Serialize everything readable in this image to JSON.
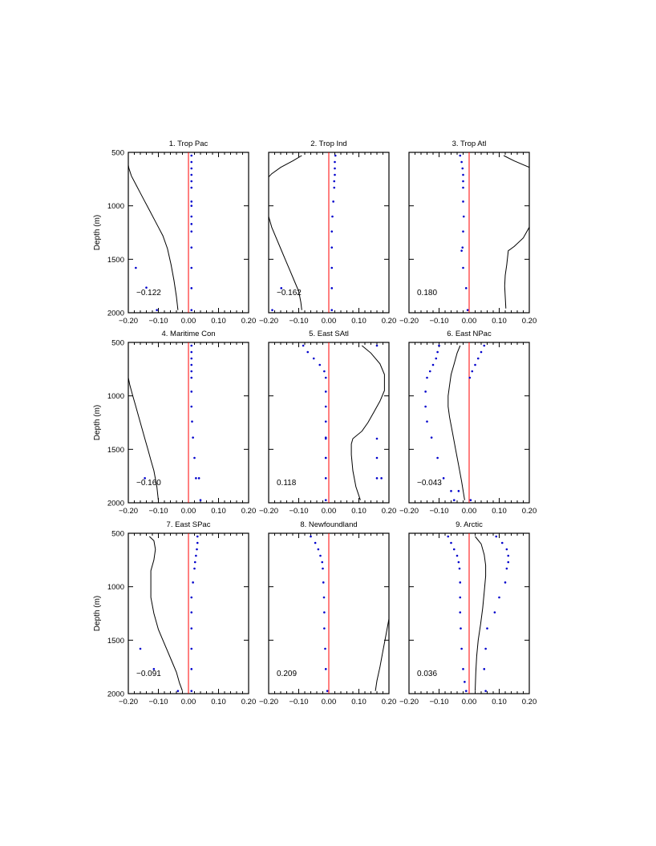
{
  "chart_data": [
    {
      "type": "line",
      "title": "1. Trop Pac",
      "ylabel": "Depth (m)",
      "xlim": [
        -0.2,
        0.2
      ],
      "ylim": [
        500,
        2000
      ],
      "x_tick_labels": [
        "-0.20",
        "-0.10",
        "0.00",
        "0.10",
        "0.20"
      ],
      "y_tick_labels": [
        "500",
        "1000",
        "1500",
        "2000"
      ],
      "y_reversed": true,
      "reference_line_x": 0,
      "correlation_label": "-0.122",
      "line": {
        "x": [
          -0.2,
          -0.198,
          -0.19,
          -0.175,
          -0.16,
          -0.145,
          -0.13,
          -0.115,
          -0.1,
          -0.085,
          -0.07,
          -0.058,
          -0.048,
          -0.04,
          -0.035
        ],
        "y": [
          620,
          650,
          720,
          800,
          880,
          960,
          1040,
          1120,
          1200,
          1280,
          1400,
          1550,
          1700,
          1850,
          1975
        ]
      },
      "dots": {
        "x": [
          0.01,
          0.01,
          0.01,
          0.01,
          0.01,
          0.01,
          0.01,
          0.01,
          0.01,
          0.01,
          0.01,
          0.01,
          0.01,
          0.01,
          0.01,
          -0.175,
          -0.14,
          -0.105
        ],
        "y": [
          530,
          590,
          650,
          710,
          770,
          830,
          960,
          1100,
          1240,
          1390,
          1580,
          1770,
          1975,
          1000,
          1170,
          1580,
          1765,
          1975
        ]
      }
    },
    {
      "type": "line",
      "title": "2. Trop Ind",
      "xlim": [
        -0.2,
        0.2
      ],
      "ylim": [
        500,
        2000
      ],
      "x_tick_labels": [
        "-0.20",
        "-0.10",
        "0.00",
        "0.10",
        "0.20"
      ],
      "y_reversed": true,
      "reference_line_x": 0,
      "correlation_label": "-0.162",
      "line": {
        "x": [
          -0.09,
          -0.12,
          -0.16,
          -0.19,
          -0.2,
          -0.2,
          -0.19,
          -0.175,
          -0.16,
          -0.145,
          -0.13,
          -0.115,
          -0.1,
          -0.093,
          -0.09
        ],
        "y": [
          530,
          580,
          640,
          700,
          730,
          1100,
          1200,
          1300,
          1400,
          1500,
          1600,
          1700,
          1800,
          1900,
          1975
        ]
      },
      "dots": {
        "x": [
          0.022,
          0.02,
          0.02,
          0.02,
          0.018,
          0.018,
          0.015,
          0.012,
          0.01,
          0.01,
          0.01,
          0.01,
          0.01,
          -0.158,
          -0.188
        ],
        "y": [
          530,
          590,
          650,
          710,
          770,
          830,
          960,
          1100,
          1240,
          1390,
          1580,
          1770,
          1975,
          1770,
          1975
        ]
      }
    },
    {
      "type": "line",
      "title": "3. Trop Atl",
      "xlim": [
        -0.2,
        0.2
      ],
      "ylim": [
        500,
        2000
      ],
      "x_tick_labels": [
        "-0.20",
        "-0.10",
        "0.00",
        "0.10",
        "0.20"
      ],
      "y_reversed": true,
      "reference_line_x": 0,
      "correlation_label": "0.180",
      "line_segments": [
        {
          "x": [
            0.115,
            0.15,
            0.2
          ],
          "y": [
            530,
            580,
            640
          ]
        },
        {
          "x": [
            0.2,
            0.18,
            0.15,
            0.13,
            0.125,
            0.12,
            0.118,
            0.12,
            0.122
          ],
          "y": [
            1200,
            1300,
            1380,
            1420,
            1550,
            1650,
            1750,
            1850,
            1960
          ]
        }
      ],
      "dots": {
        "x": [
          -0.03,
          -0.025,
          -0.022,
          -0.02,
          -0.02,
          -0.02,
          -0.02,
          -0.018,
          -0.02,
          -0.022,
          -0.025,
          -0.02,
          -0.01,
          -0.005
        ],
        "y": [
          530,
          590,
          650,
          710,
          770,
          830,
          960,
          1100,
          1240,
          1390,
          1420,
          1580,
          1770,
          1975
        ]
      }
    },
    {
      "type": "line",
      "title": "4. Maritime Con",
      "ylabel": "Depth (m)",
      "xlim": [
        -0.2,
        0.2
      ],
      "ylim": [
        500,
        2000
      ],
      "x_tick_labels": [
        "-0.20",
        "-0.10",
        "0.00",
        "0.10",
        "0.20"
      ],
      "y_tick_labels": [
        "500",
        "1000",
        "1500",
        "2000"
      ],
      "y_reversed": true,
      "reference_line_x": 0,
      "correlation_label": "-0.160",
      "line": {
        "x": [
          -0.2,
          -0.195,
          -0.185,
          -0.175,
          -0.165,
          -0.155,
          -0.145,
          -0.135,
          -0.125,
          -0.115,
          -0.105,
          -0.1
        ],
        "y": [
          830,
          900,
          1000,
          1100,
          1200,
          1300,
          1400,
          1500,
          1600,
          1700,
          1850,
          1980
        ]
      },
      "dots": {
        "x": [
          0.01,
          0.01,
          0.01,
          0.01,
          0.01,
          0.01,
          0.01,
          0.01,
          0.012,
          0.015,
          0.02,
          0.025,
          0.035,
          0.04,
          -0.145
        ],
        "y": [
          530,
          590,
          650,
          710,
          770,
          830,
          960,
          1100,
          1240,
          1390,
          1580,
          1770,
          1770,
          1975,
          1770
        ]
      }
    },
    {
      "type": "line",
      "title": "5. East SAtl",
      "xlim": [
        -0.2,
        0.2
      ],
      "ylim": [
        500,
        2000
      ],
      "x_tick_labels": [
        "-0.20",
        "-0.10",
        "0.00",
        "0.10",
        "0.20"
      ],
      "y_reversed": true,
      "reference_line_x": 0,
      "correlation_label": "0.118",
      "line": {
        "x": [
          0.11,
          0.14,
          0.17,
          0.185,
          0.185,
          0.17,
          0.15,
          0.13,
          0.11,
          0.08,
          0.075,
          0.075,
          0.08,
          0.09,
          0.105
        ],
        "y": [
          530,
          600,
          700,
          800,
          950,
          1050,
          1150,
          1250,
          1330,
          1400,
          1450,
          1550,
          1700,
          1850,
          1975
        ]
      },
      "dots": {
        "x": [
          -0.085,
          -0.07,
          -0.05,
          -0.03,
          -0.015,
          -0.01,
          -0.01,
          -0.01,
          -0.01,
          -0.01,
          -0.01,
          -0.01,
          -0.01,
          -0.01,
          -0.01,
          0.16,
          0.16,
          0.16,
          0.16,
          0.175
        ],
        "y": [
          530,
          590,
          650,
          710,
          770,
          830,
          960,
          1100,
          1240,
          1390,
          1580,
          1770,
          1975,
          1400,
          1580,
          530,
          1400,
          1580,
          1770,
          1770
        ]
      }
    },
    {
      "type": "line",
      "title": "6. East NPac",
      "xlim": [
        -0.2,
        0.2
      ],
      "ylim": [
        500,
        2000
      ],
      "x_tick_labels": [
        "-0.20",
        "-0.10",
        "0.00",
        "0.10",
        "0.20"
      ],
      "y_reversed": true,
      "reference_line_x": 0,
      "correlation_label": "-0.043",
      "line": {
        "x": [
          -0.03,
          -0.04,
          -0.05,
          -0.06,
          -0.065,
          -0.07,
          -0.07,
          -0.065,
          -0.055,
          -0.045,
          -0.035,
          -0.025,
          -0.015
        ],
        "y": [
          530,
          600,
          700,
          800,
          900,
          1000,
          1100,
          1200,
          1350,
          1500,
          1650,
          1800,
          1975
        ]
      },
      "dots": {
        "x": [
          -0.1,
          -0.105,
          -0.11,
          -0.12,
          -0.13,
          -0.14,
          -0.145,
          -0.145,
          -0.14,
          -0.125,
          -0.105,
          -0.085,
          -0.06,
          -0.05,
          -0.035,
          0.05,
          0.04,
          0.03,
          0.02,
          0.01,
          0.002,
          0.005
        ],
        "y": [
          530,
          590,
          650,
          710,
          770,
          830,
          960,
          1100,
          1240,
          1390,
          1580,
          1770,
          1890,
          1975,
          1890,
          530,
          590,
          650,
          710,
          770,
          830,
          1975
        ]
      }
    },
    {
      "type": "line",
      "title": "7. East SPac",
      "ylabel": "Depth (m)",
      "xlim": [
        -0.2,
        0.2
      ],
      "ylim": [
        500,
        2000
      ],
      "x_tick_labels": [
        "-0.20",
        "-0.10",
        "0.00",
        "0.10",
        "0.20"
      ],
      "y_tick_labels": [
        "500",
        "1000",
        "1500",
        "2000"
      ],
      "y_reversed": true,
      "reference_line_x": 0,
      "correlation_label": "-0.091",
      "line": {
        "x": [
          -0.13,
          -0.115,
          -0.11,
          -0.115,
          -0.125,
          -0.125,
          -0.115,
          -0.1,
          -0.085,
          -0.07,
          -0.055,
          -0.04,
          -0.03,
          -0.02
        ],
        "y": [
          530,
          570,
          650,
          750,
          850,
          1100,
          1250,
          1400,
          1500,
          1600,
          1700,
          1800,
          1900,
          1975
        ]
      },
      "dots": {
        "x": [
          0.03,
          0.03,
          0.028,
          0.025,
          0.022,
          0.02,
          0.015,
          0.01,
          0.01,
          0.01,
          0.01,
          0.01,
          0.01,
          -0.16,
          -0.115,
          -0.035
        ],
        "y": [
          530,
          590,
          650,
          710,
          770,
          830,
          960,
          1100,
          1240,
          1390,
          1580,
          1770,
          1975,
          1580,
          1770,
          1975
        ]
      }
    },
    {
      "type": "line",
      "title": "8. Newfoundland",
      "xlim": [
        -0.2,
        0.2
      ],
      "ylim": [
        500,
        2000
      ],
      "x_tick_labels": [
        "-0.20",
        "-0.10",
        "0.00",
        "0.10",
        "0.20"
      ],
      "y_reversed": true,
      "reference_line_x": 0,
      "correlation_label": "0.209",
      "line": {
        "x": [
          0.2,
          0.19,
          0.18,
          0.17,
          0.16,
          0.155
        ],
        "y": [
          1300,
          1450,
          1600,
          1750,
          1880,
          1975
        ]
      },
      "dots": {
        "x": [
          -0.06,
          -0.045,
          -0.035,
          -0.028,
          -0.022,
          -0.02,
          -0.018,
          -0.016,
          -0.015,
          -0.015,
          -0.012,
          -0.01,
          -0.005
        ],
        "y": [
          530,
          590,
          650,
          710,
          770,
          830,
          960,
          1100,
          1240,
          1390,
          1580,
          1770,
          1975
        ]
      }
    },
    {
      "type": "line",
      "title": "9. Arctic",
      "xlim": [
        -0.2,
        0.2
      ],
      "ylim": [
        500,
        2000
      ],
      "x_tick_labels": [
        "-0.20",
        "-0.10",
        "0.00",
        "0.10",
        "0.20"
      ],
      "y_reversed": true,
      "reference_line_x": 0,
      "correlation_label": "0.036",
      "line": {
        "x": [
          0.02,
          0.04,
          0.05,
          0.055,
          0.055,
          0.05,
          0.045,
          0.038,
          0.03,
          0.025,
          0.022,
          0.02
        ],
        "y": [
          530,
          600,
          700,
          800,
          900,
          1050,
          1200,
          1350,
          1500,
          1650,
          1800,
          1975
        ]
      },
      "dots": {
        "x": [
          -0.07,
          -0.06,
          -0.05,
          -0.04,
          -0.035,
          -0.032,
          -0.03,
          -0.03,
          -0.03,
          -0.028,
          -0.025,
          -0.02,
          -0.015,
          -0.01,
          0.09,
          0.11,
          0.125,
          0.13,
          0.13,
          0.125,
          0.12,
          0.1,
          0.085,
          0.06,
          0.055,
          0.05,
          0.055
        ],
        "y": [
          530,
          590,
          650,
          710,
          770,
          830,
          960,
          1100,
          1240,
          1390,
          1580,
          1770,
          1890,
          1975,
          530,
          590,
          650,
          710,
          770,
          830,
          960,
          1100,
          1240,
          1390,
          1580,
          1770,
          1975
        ]
      }
    }
  ],
  "colors": {
    "reference_line": "#ff0000",
    "dots": "#0000cc",
    "line": "#000000",
    "axis": "#000000"
  }
}
